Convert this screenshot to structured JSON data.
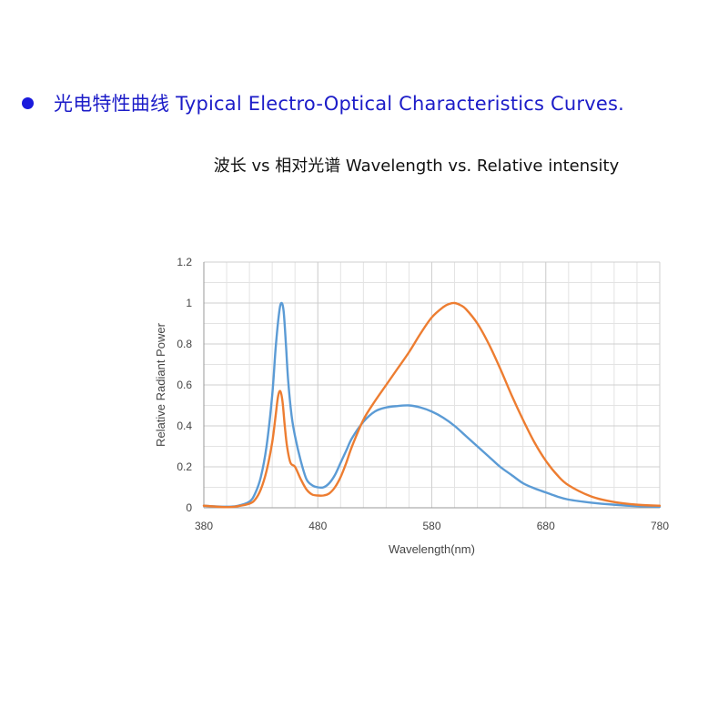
{
  "heading": {
    "text": "光电特性曲线  Typical Electro-Optical Characteristics Curves.",
    "color": "#1c1cc8"
  },
  "chart_data": {
    "type": "line",
    "title": "波长 vs  相对光谱 Wavelength vs. Relative intensity",
    "xlabel": "Wavelength(nm)",
    "ylabel": "Relative Radiant Power",
    "xlim": [
      380,
      780
    ],
    "ylim": [
      0,
      1.2
    ],
    "x_ticks": [
      380,
      480,
      580,
      680,
      780
    ],
    "y_ticks": [
      0,
      0.2,
      0.4,
      0.6,
      0.8,
      1,
      1.2
    ],
    "grid": true,
    "x_minor_step": 20,
    "y_minor_step": 0.1,
    "series": [
      {
        "color": "#5b9bd5",
        "x": [
          380,
          400,
          410,
          420,
          425,
          430,
          435,
          440,
          443,
          446,
          448,
          450,
          452,
          454,
          457,
          460,
          465,
          470,
          475,
          480,
          485,
          490,
          495,
          500,
          505,
          510,
          520,
          530,
          540,
          550,
          560,
          570,
          580,
          590,
          600,
          610,
          620,
          630,
          640,
          650,
          660,
          670,
          680,
          690,
          700,
          720,
          740,
          760,
          780
        ],
        "y": [
          0.01,
          0.005,
          0.01,
          0.03,
          0.07,
          0.15,
          0.3,
          0.55,
          0.78,
          0.95,
          1.0,
          0.96,
          0.8,
          0.62,
          0.45,
          0.35,
          0.23,
          0.14,
          0.11,
          0.1,
          0.1,
          0.12,
          0.16,
          0.22,
          0.28,
          0.34,
          0.42,
          0.47,
          0.49,
          0.497,
          0.5,
          0.49,
          0.47,
          0.44,
          0.4,
          0.35,
          0.3,
          0.25,
          0.2,
          0.16,
          0.12,
          0.095,
          0.075,
          0.055,
          0.04,
          0.025,
          0.015,
          0.008,
          0.005
        ]
      },
      {
        "color": "#ed7d31",
        "x": [
          380,
          400,
          410,
          420,
          425,
          430,
          435,
          440,
          443,
          445,
          447,
          449,
          451,
          453,
          456,
          460,
          465,
          470,
          475,
          480,
          485,
          490,
          495,
          500,
          505,
          510,
          520,
          530,
          540,
          550,
          560,
          570,
          580,
          590,
          595,
          600,
          605,
          610,
          620,
          630,
          640,
          650,
          660,
          670,
          680,
          690,
          700,
          720,
          740,
          760,
          780
        ],
        "y": [
          0.01,
          0.003,
          0.008,
          0.02,
          0.04,
          0.09,
          0.18,
          0.32,
          0.45,
          0.54,
          0.57,
          0.52,
          0.4,
          0.3,
          0.22,
          0.2,
          0.14,
          0.09,
          0.065,
          0.06,
          0.06,
          0.07,
          0.1,
          0.15,
          0.22,
          0.3,
          0.43,
          0.52,
          0.6,
          0.68,
          0.76,
          0.85,
          0.93,
          0.98,
          0.995,
          1.0,
          0.99,
          0.97,
          0.9,
          0.8,
          0.68,
          0.55,
          0.43,
          0.32,
          0.23,
          0.16,
          0.11,
          0.055,
          0.028,
          0.015,
          0.01
        ]
      }
    ]
  }
}
